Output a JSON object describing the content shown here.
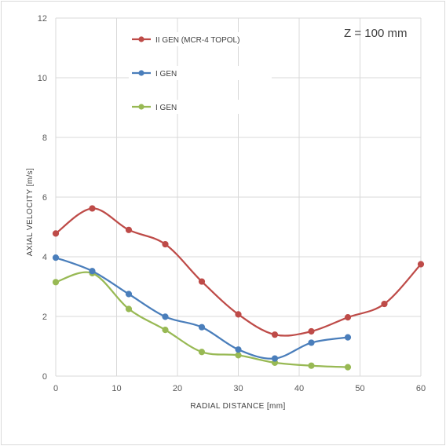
{
  "chart_data": {
    "type": "line",
    "annotation": "Z = 100 mm",
    "xlabel": "RADIAL DISTANCE [mm]",
    "ylabel": "AXIAL VELOCITY [m/s]",
    "xlim": [
      0,
      60
    ],
    "ylim": [
      0,
      12
    ],
    "xticks": [
      0,
      10,
      20,
      30,
      40,
      50,
      60
    ],
    "yticks": [
      0,
      2,
      4,
      6,
      8,
      10,
      12
    ],
    "grid": true,
    "legend_position": "top-left (inside plot)",
    "series": [
      {
        "name": "II GEN (MCR-4 TOPOL)",
        "color": "#be4b48",
        "x": [
          0,
          6,
          12,
          18,
          24,
          30,
          36,
          42,
          48,
          54,
          60
        ],
        "y": [
          4.78,
          5.62,
          4.9,
          4.42,
          3.17,
          2.07,
          1.39,
          1.5,
          1.97,
          2.42,
          3.75
        ]
      },
      {
        "name": "I GEN",
        "color": "#4a7ebb",
        "x": [
          0,
          6,
          12,
          18,
          24,
          30,
          36,
          42,
          48
        ],
        "y": [
          3.97,
          3.52,
          2.75,
          1.99,
          1.64,
          0.89,
          0.59,
          1.12,
          1.3
        ]
      },
      {
        "name": "I GEN",
        "color": "#98b954",
        "x": [
          0,
          6,
          12,
          18,
          24,
          30,
          36,
          42,
          48
        ],
        "y": [
          3.15,
          3.45,
          2.25,
          1.55,
          0.81,
          0.7,
          0.45,
          0.35,
          0.3
        ]
      }
    ]
  }
}
